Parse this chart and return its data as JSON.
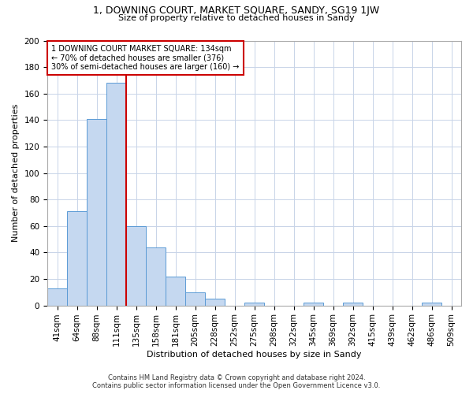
{
  "title": "1, DOWNING COURT, MARKET SQUARE, SANDY, SG19 1JW",
  "subtitle": "Size of property relative to detached houses in Sandy",
  "xlabel": "Distribution of detached houses by size in Sandy",
  "ylabel": "Number of detached properties",
  "footer_line1": "Contains HM Land Registry data © Crown copyright and database right 2024.",
  "footer_line2": "Contains public sector information licensed under the Open Government Licence v3.0.",
  "bin_labels": [
    "41sqm",
    "64sqm",
    "88sqm",
    "111sqm",
    "135sqm",
    "158sqm",
    "181sqm",
    "205sqm",
    "228sqm",
    "252sqm",
    "275sqm",
    "298sqm",
    "322sqm",
    "345sqm",
    "369sqm",
    "392sqm",
    "415sqm",
    "439sqm",
    "462sqm",
    "486sqm",
    "509sqm"
  ],
  "bar_heights": [
    13,
    71,
    141,
    168,
    60,
    44,
    22,
    10,
    5,
    0,
    2,
    0,
    0,
    2,
    0,
    2,
    0,
    0,
    0,
    2,
    0
  ],
  "bar_color": "#c5d8f0",
  "bar_edge_color": "#5b9bd5",
  "vline_color": "#cc0000",
  "annotation_text": "1 DOWNING COURT MARKET SQUARE: 134sqm\n← 70% of detached houses are smaller (376)\n30% of semi-detached houses are larger (160) →",
  "annotation_box_edgecolor": "#cc0000",
  "ylim": [
    0,
    200
  ],
  "yticks": [
    0,
    20,
    40,
    60,
    80,
    100,
    120,
    140,
    160,
    180,
    200
  ],
  "background_color": "#ffffff",
  "grid_color": "#c8d4e8",
  "title_fontsize": 9,
  "subtitle_fontsize": 8,
  "axis_label_fontsize": 8,
  "tick_fontsize": 7.5,
  "annotation_fontsize": 7,
  "footer_fontsize": 6
}
